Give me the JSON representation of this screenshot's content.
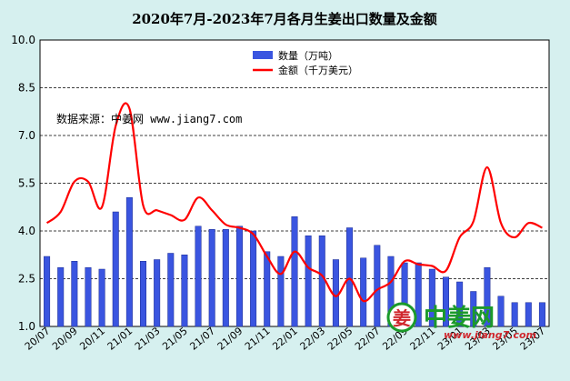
{
  "chart_data": {
    "type": "bar",
    "title": "2020年7月-2023年7月各月生姜出口数量及金额",
    "source_note": "数据来源：中姜网 www.jiang7.com",
    "watermark": {
      "name": "中姜网",
      "url": "www.jiang7.com",
      "logo_char": "姜"
    },
    "ylim": [
      1.0,
      10.0
    ],
    "yticks": [
      "1.0",
      "2.5",
      "4.0",
      "5.5",
      "7.0",
      "8.5",
      "10.0"
    ],
    "grid": "horizontal dashed",
    "legend_position": "top-center",
    "categories": [
      "20/07",
      "20/08",
      "20/09",
      "20/10",
      "20/11",
      "20/12",
      "21/01",
      "21/02",
      "21/03",
      "21/04",
      "21/05",
      "21/06",
      "21/07",
      "21/08",
      "21/09",
      "21/10",
      "21/11",
      "21/12",
      "22/01",
      "22/02",
      "22/03",
      "22/04",
      "22/05",
      "22/06",
      "22/07",
      "22/08",
      "22/09",
      "22/10",
      "22/11",
      "22/12",
      "23/01",
      "23/02",
      "23/03",
      "23/04",
      "23/05",
      "23/06",
      "23/07"
    ],
    "xtick_labels": [
      "20/07",
      "20/09",
      "20/11",
      "21/01",
      "21/03",
      "21/05",
      "21/07",
      "21/09",
      "21/11",
      "22/01",
      "22/03",
      "22/05",
      "22/07",
      "22/09",
      "22/11",
      "23/01",
      "23/03",
      "23/05",
      "23/07"
    ],
    "series": [
      {
        "name": "数量（万吨）",
        "type": "bar",
        "color": "#3a55e0",
        "values": [
          3.2,
          2.85,
          3.05,
          2.85,
          2.8,
          4.6,
          5.05,
          3.05,
          3.1,
          3.3,
          3.25,
          4.15,
          4.05,
          4.05,
          4.15,
          4.0,
          3.35,
          3.2,
          4.45,
          3.85,
          3.85,
          3.1,
          4.1,
          3.15,
          3.55,
          3.2,
          3.0,
          3.0,
          2.8,
          2.55,
          2.4,
          2.1,
          2.85,
          1.95,
          1.75,
          1.75,
          1.75
        ]
      },
      {
        "name": "金额（千万美元）",
        "type": "line",
        "color": "#ff0000",
        "values": [
          4.25,
          4.6,
          5.55,
          5.55,
          4.75,
          7.3,
          7.85,
          4.8,
          4.65,
          4.5,
          4.35,
          5.05,
          4.65,
          4.2,
          4.1,
          3.9,
          3.2,
          2.65,
          3.35,
          2.85,
          2.6,
          1.95,
          2.5,
          1.8,
          2.15,
          2.4,
          3.05,
          2.95,
          2.9,
          2.75,
          3.8,
          4.3,
          6.0,
          4.25,
          3.8,
          4.25,
          4.1
        ]
      }
    ]
  },
  "colors": {
    "background": "#d6f0ef",
    "plot_area": "#ffffff",
    "bar": "#3a55e0",
    "line": "#ff0000",
    "grid": "#000000"
  }
}
